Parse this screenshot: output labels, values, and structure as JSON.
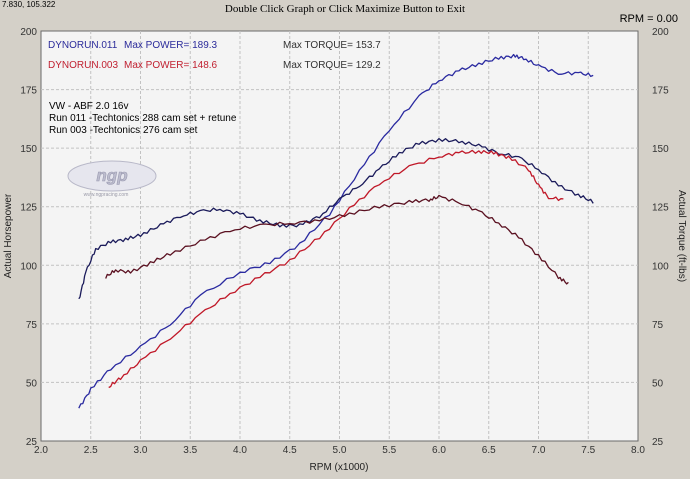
{
  "window": {
    "coordinate_readout": "7.830, 105.322",
    "exit_hint": "Double Click Graph or Click Maximize Button to Exit",
    "rpm_readout": "RPM = 0.00"
  },
  "logo": {
    "text": "ngp",
    "subtext": "www.ngpracing.com"
  },
  "chart_data": {
    "type": "line",
    "xlabel": "RPM (x1000)",
    "ylabel_left": "Actual Horsepower",
    "ylabel_right": "Actual Torque (ft-lbs)",
    "xlim": [
      2.0,
      8.0
    ],
    "ylim": [
      25,
      200
    ],
    "x_ticks": [
      "2.0",
      "2.5",
      "3.0",
      "3.5",
      "4.0",
      "4.5",
      "5.0",
      "5.5",
      "6.0",
      "6.5",
      "7.0",
      "7.5",
      "8.0"
    ],
    "y_ticks": [
      "25",
      "50",
      "75",
      "100",
      "125",
      "150",
      "175",
      "200"
    ],
    "grid": true,
    "legend": [
      {
        "run": "DYNORUN.011",
        "power_label": "Max POWER= 189.3",
        "torque_label": "Max TORQUE= 153.7",
        "color": "#2b2b9a"
      },
      {
        "run": "DYNORUN.003",
        "power_label": "Max POWER= 148.6",
        "torque_label": "Max TORQUE= 129.2",
        "color": "#c02030"
      }
    ],
    "notes": [
      "VW - ABF 2.0 16v",
      "Run 011 -Techtonics 288 cam set + retune",
      "Run 003 -Techtonics 276 cam set"
    ],
    "series": [
      {
        "name": "Run 011 Power",
        "color": "#2a2aa0",
        "x": [
          2.38,
          2.5,
          2.7,
          3.0,
          3.3,
          3.6,
          4.0,
          4.3,
          4.6,
          4.9,
          5.2,
          5.5,
          5.8,
          6.0,
          6.2,
          6.4,
          6.6,
          6.75,
          6.85,
          7.0,
          7.2,
          7.4,
          7.55
        ],
        "y": [
          39,
          47,
          56,
          65,
          75,
          87,
          97,
          101,
          109,
          122,
          140,
          158,
          172,
          179,
          183,
          186,
          188.5,
          189.3,
          188.5,
          185,
          182,
          182,
          181
        ]
      },
      {
        "name": "Run 011 Torque",
        "color": "#1a1a5a",
        "x": [
          2.38,
          2.45,
          2.55,
          2.7,
          2.85,
          3.0,
          3.2,
          3.4,
          3.6,
          3.8,
          4.0,
          4.2,
          4.4,
          4.6,
          4.8,
          5.0,
          5.2,
          5.4,
          5.6,
          5.8,
          6.0,
          6.2,
          6.4,
          6.6,
          6.8,
          7.0,
          7.2,
          7.4,
          7.55
        ],
        "y": [
          85,
          97,
          107,
          110,
          111,
          113,
          117,
          121,
          123,
          124,
          122,
          119,
          117,
          117,
          121,
          128,
          134,
          141,
          148,
          152,
          153.5,
          153,
          151,
          148,
          146,
          141,
          134,
          130,
          127
        ]
      },
      {
        "name": "Run 003 Power",
        "color": "#c01828",
        "x": [
          2.68,
          2.8,
          3.0,
          3.3,
          3.6,
          3.9,
          4.2,
          4.5,
          4.8,
          5.1,
          5.4,
          5.7,
          6.0,
          6.2,
          6.4,
          6.55,
          6.7,
          6.9,
          7.0,
          7.1,
          7.25
        ],
        "y": [
          48,
          52,
          59,
          69,
          79,
          88,
          95,
          102,
          112,
          124,
          135,
          142,
          146.5,
          148,
          148.6,
          148,
          146,
          141,
          134,
          129,
          128
        ]
      },
      {
        "name": "Run 003 Torque",
        "color": "#5a1020",
        "x": [
          2.65,
          2.75,
          2.9,
          3.1,
          3.3,
          3.6,
          3.9,
          4.2,
          4.5,
          4.8,
          5.1,
          5.4,
          5.7,
          5.9,
          6.0,
          6.2,
          6.4,
          6.6,
          6.8,
          7.0,
          7.2,
          7.3
        ],
        "y": [
          95,
          98,
          97,
          101,
          105,
          110,
          115,
          117,
          118,
          119,
          122,
          125,
          127,
          128,
          129.2,
          127,
          123,
          118,
          112,
          104,
          95,
          92
        ]
      }
    ]
  }
}
